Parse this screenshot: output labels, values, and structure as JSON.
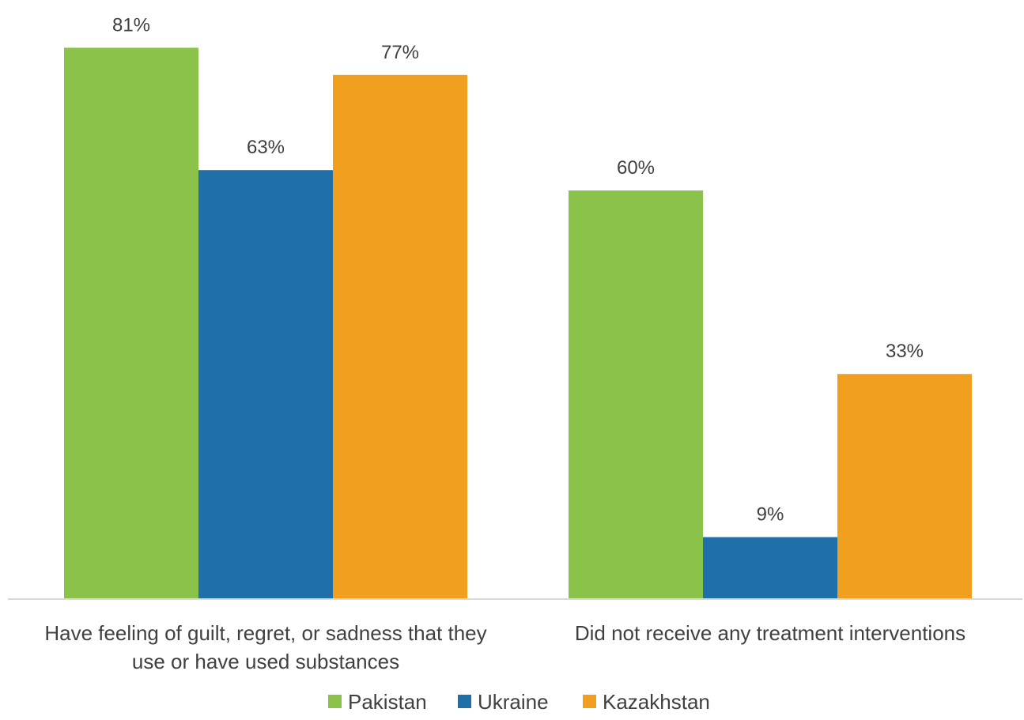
{
  "chart_data": {
    "type": "bar",
    "categories": [
      [
        "Have feeling of guilt, regret, or sadness that they",
        "use or have used substances"
      ],
      [
        "Did not receive any treatment interventions"
      ]
    ],
    "series": [
      {
        "name": "Pakistan",
        "color": "#8bc34a",
        "values": [
          81,
          60
        ],
        "labels": [
          "81%",
          "60%"
        ]
      },
      {
        "name": "Ukraine",
        "color": "#1f6fa8",
        "values": [
          63,
          9
        ],
        "labels": [
          "63%",
          "9%"
        ]
      },
      {
        "name": "Kazakhstan",
        "color": "#f0a01e",
        "values": [
          77,
          33
        ],
        "labels": [
          "77%",
          "33%"
        ]
      }
    ],
    "ylim": [
      0,
      100
    ],
    "grid": false,
    "legend": "bottom-center"
  }
}
